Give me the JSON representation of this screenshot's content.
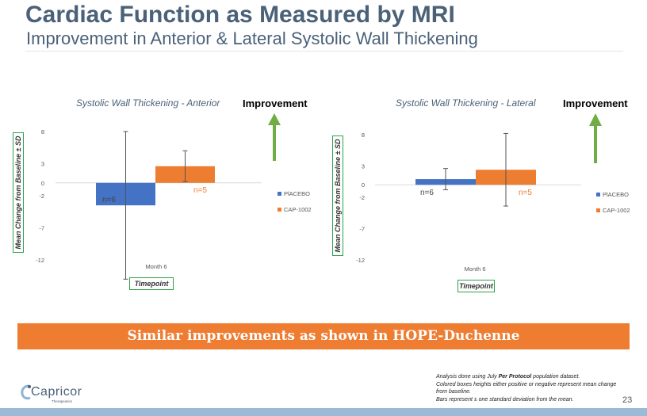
{
  "title": "Cardiac Function as Measured by MRI",
  "subtitle": "Improvement in Anterior & Lateral Systolic Wall Thickening",
  "improvement_label": "Improvement",
  "ylabel": "Mean Change from Baseline ± SD",
  "xlabel": "Timepoint",
  "banner": "Similar improvements as shown in HOPE-Duchenne",
  "notes": {
    "line1_pre": "Analysis done using July ",
    "line1_bold": "Per Protocol",
    "line1_post": " population dataset.",
    "line2": "Colored boxes heights either positive or negative represent mean change from baseline.",
    "line3": "Bars represent ± one standard deviation from the mean."
  },
  "page_number": "23",
  "logo": {
    "name": "Capricor",
    "tagline": "Therapeutics"
  },
  "colors": {
    "placebo": "#4472c4",
    "cap": "#ed7d31",
    "arrow": "#70ad47",
    "box": "#2ea24a"
  },
  "chart_data": [
    {
      "type": "bar",
      "title": "Systolic Wall Thickening - Anterior",
      "categories": [
        "Month 6"
      ],
      "series": [
        {
          "name": "PlACEBO",
          "values": [
            -3.5
          ],
          "error": [
            11.5
          ],
          "n_label": "n=6"
        },
        {
          "name": "CAP-1002",
          "values": [
            2.6
          ],
          "error": [
            2.4
          ],
          "n_label": "n=5"
        }
      ],
      "yticks": [
        8,
        3,
        0,
        -2,
        -7,
        -12
      ],
      "ylim": [
        -12,
        8
      ],
      "legend": "right",
      "grid": false
    },
    {
      "type": "bar",
      "title": "Systolic Wall Thickening - Lateral",
      "categories": [
        "Month 6"
      ],
      "series": [
        {
          "name": "PlACEBO",
          "values": [
            0.9
          ],
          "error": [
            1.7
          ],
          "n_label": "n=6"
        },
        {
          "name": "CAP-1002",
          "values": [
            2.4
          ],
          "error": [
            5.8
          ],
          "n_label": "n=5"
        }
      ],
      "yticks": [
        8,
        3,
        0,
        -2,
        -7,
        -12
      ],
      "ylim": [
        -12,
        8
      ],
      "legend": "right",
      "grid": false
    }
  ]
}
